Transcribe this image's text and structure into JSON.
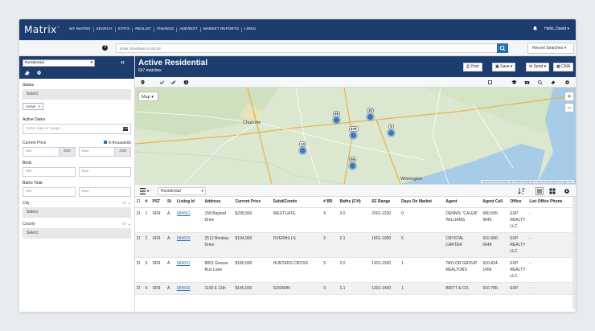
{
  "app": {
    "logo": "Matrix",
    "logo_tm": "™",
    "nav": [
      "MY MATRIX",
      "SEARCH",
      "STATS",
      "REALIST",
      "FINANCE",
      "ADD/EDIT",
      "MARKET REPORTS",
      "LINKS"
    ],
    "greeting": "Hello, David"
  },
  "search": {
    "placeholder": "Enter Shorthand or MLS#",
    "recent_label": "Recent Searches"
  },
  "left": {
    "property_type": "Residential",
    "status_label": "Status",
    "status_select": "Select",
    "status_chip": "Active",
    "active_dates_label": "Active Dates",
    "date_placeholder": "Enter date or range",
    "price_label": "Current Price",
    "thousands_label": "in thousands",
    "min": "Min",
    "max": "Max",
    "price_suffix": ".000",
    "beds_label": "Beds",
    "baths_label": "Baths Total",
    "city_label": "City",
    "county_label": "County",
    "or": "Or",
    "select": "Select"
  },
  "main": {
    "title": "Active Residential",
    "matches": "667 matches",
    "print": "Print",
    "save": "Save",
    "send": "Send",
    "cma": "CMA",
    "map_label": "Map",
    "view": "Residential"
  },
  "map": {
    "cities": [
      "Charlotte",
      "Wilmington"
    ],
    "clusters": [
      "59",
      "30",
      "479",
      "9",
      "10",
      "59"
    ],
    "attribution": "Keyboard shortcuts  Map data ©2023 Google  20 mi  Terms of Use  Report a map error"
  },
  "table": {
    "headers": [
      "#",
      "PST",
      "St",
      "Listing Id",
      "Address",
      "Current Price",
      "Subd/Condo",
      "# BR",
      "Baths (F.H)",
      "SF Range",
      "Days On Market",
      "Agent",
      "Agent Cell",
      "Office",
      "List Office Phone"
    ],
    "rows": [
      {
        "n": "1",
        "pst": "SFR",
        "st": "A",
        "id": "684661",
        "addr": "158 Bayleaf Drive",
        "price": "$299,900",
        "subd": "WESTGATE",
        "br": "4",
        "baths": "3.0",
        "sf": "2001-2200",
        "dom": "0",
        "agent": "DENNIS \"CALEB\" WILLIAMS",
        "cell": "980-505-9043",
        "office": "EXP REALTY LLC",
        "phone": "-"
      },
      {
        "n": "2",
        "pst": "SFR",
        "st": "A",
        "id": "684623",
        "addr": "2512 Brinkley Drive",
        "price": "$194,900",
        "subd": "OVERHILLS",
        "br": "3",
        "baths": "2.1",
        "sf": "1801-1900",
        "dom": "5",
        "agent": "CRYSTAL CARTER",
        "cell": "910-990-0648",
        "office": "EXP REALTY LLC",
        "phone": "-"
      },
      {
        "n": "3",
        "pst": "SFR",
        "st": "A",
        "id": "684601",
        "addr": "8801 Grouse Run Lane",
        "price": "$180,000",
        "subd": "HUNTERS CROSS",
        "br": "3",
        "baths": "2.0",
        "sf": "1401-1500",
        "dom": "1",
        "agent": "TAYLOR GROUP REALTORS",
        "cell": "910-824-1458",
        "office": "EXP REALTY LLC",
        "phone": "-"
      },
      {
        "n": "4",
        "pst": "SFR",
        "st": "A",
        "id": "684593",
        "addr": "1100 E 11th",
        "price": "$145,000",
        "subd": "GODWIN",
        "br": "3",
        "baths": "1.1",
        "sf": "1301-1400",
        "dom": "1",
        "agent": "BRITT & CO.",
        "cell": "910-785-",
        "office": "EXP",
        "phone": "-"
      }
    ]
  }
}
